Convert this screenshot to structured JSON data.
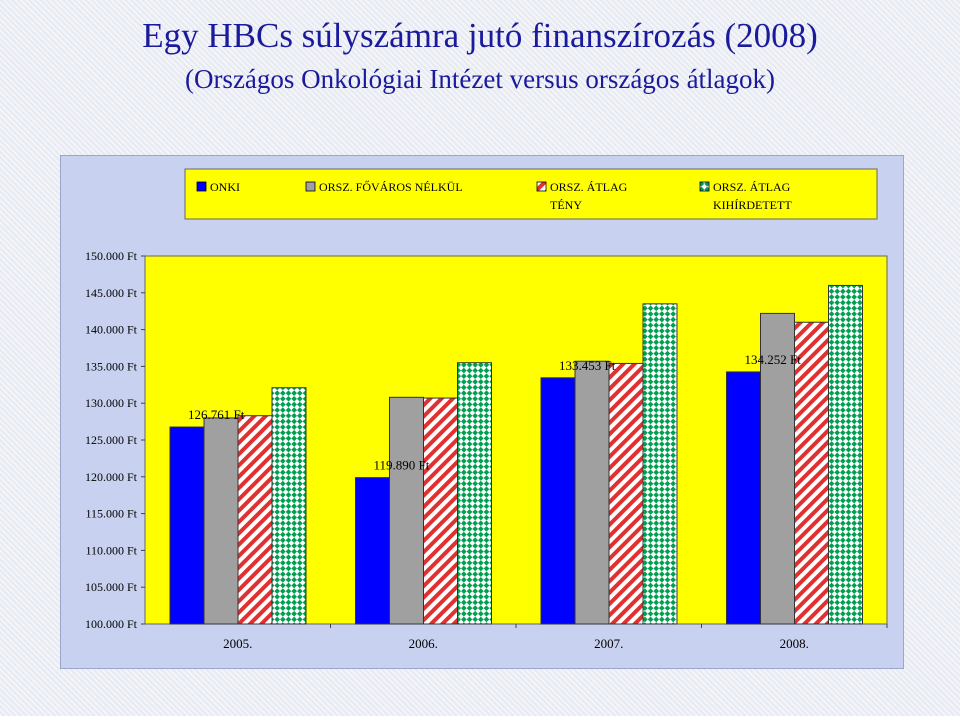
{
  "title": "Egy HBCs súlyszámra jutó finanszírozás (2008)",
  "subtitle": "(Országos Onkológiai Intézet versus országos átlagok)",
  "colors": {
    "title": "#1a1a9c",
    "frame_bg": "#c8d2f0",
    "plot_bg": "#ffff00",
    "onki": "#0000ff",
    "orsz_fovaros": "#a0a0a0",
    "orsz_teny": "#e03030",
    "orsz_kihirdetett": "#00a050"
  },
  "chart_data": {
    "type": "bar",
    "categories": [
      "2005.",
      "2006.",
      "2007.",
      "2008."
    ],
    "series": [
      {
        "name": "ONKI",
        "fill": "solid",
        "color": "#0000ff",
        "values": [
          126761,
          119890,
          133453,
          134252
        ]
      },
      {
        "name": "ORSZ. FŐVÁROS NÉLKÜL",
        "fill": "solid",
        "color": "#a0a0a0",
        "values": [
          128000,
          130800,
          135700,
          142200
        ]
      },
      {
        "name": "ORSZ. ÁTLAG TÉNY",
        "fill": "stripes",
        "color": "#e03030",
        "values": [
          128300,
          130700,
          135400,
          141000
        ]
      },
      {
        "name": "ORSZ. ÁTLAG KIHÍRDETETT",
        "fill": "checker",
        "color": "#00a050",
        "values": [
          132100,
          135500,
          143500,
          146000
        ]
      }
    ],
    "data_labels": [
      "126.761 Ft",
      "119.890 Ft",
      "133.453 Ft",
      "134.252 Ft"
    ],
    "yticks": [
      "100.000 Ft",
      "105.000 Ft",
      "110.000 Ft",
      "115.000 Ft",
      "120.000 Ft",
      "125.000 Ft",
      "130.000 Ft",
      "135.000 Ft",
      "140.000 Ft",
      "145.000 Ft",
      "150.000 Ft"
    ],
    "ylim": [
      100000,
      150000
    ],
    "grid": false,
    "legend_position": "top"
  }
}
